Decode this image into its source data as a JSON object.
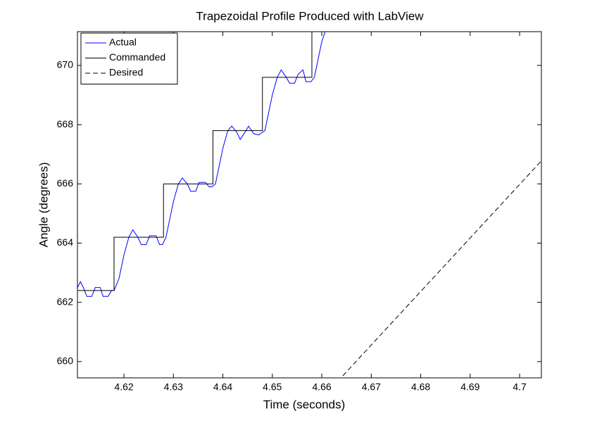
{
  "chart_data": {
    "type": "line",
    "title": "Trapezoidal Profile Produced with LabView",
    "xlabel": "Time (seconds)",
    "ylabel": "Angle (degrees)",
    "xlim": [
      4.6106,
      4.7044
    ],
    "ylim": [
      659.45,
      671.14
    ],
    "xticks": [
      4.62,
      4.63,
      4.64,
      4.65,
      4.66,
      4.67,
      4.68,
      4.69,
      4.7
    ],
    "yticks": [
      660,
      662,
      664,
      666,
      668,
      670
    ],
    "legend": "upper left",
    "series": [
      {
        "name": "Actual",
        "color": "#0000ff",
        "dashed": false,
        "x": [
          4.6106,
          4.6112,
          4.6118,
          4.6125,
          4.6135,
          4.6142,
          4.6152,
          4.6158,
          4.6168,
          4.6175,
          4.618,
          4.619,
          4.62,
          4.621,
          4.6218,
          4.6228,
          4.6235,
          4.6245,
          4.6252,
          4.6265,
          4.6272,
          4.6278,
          4.6285,
          4.629,
          4.63,
          4.631,
          4.6318,
          4.6328,
          4.6335,
          4.6345,
          4.6352,
          4.6365,
          4.6372,
          4.6378,
          4.6385,
          4.639,
          4.64,
          4.641,
          4.6418,
          4.6428,
          4.6435,
          4.6445,
          4.6452,
          4.6462,
          4.6472,
          4.6485,
          4.649,
          4.65,
          4.651,
          4.6518,
          4.6528,
          4.6535,
          4.6545,
          4.6552,
          4.6562,
          4.6568,
          4.6578,
          4.6585,
          4.659,
          4.66,
          4.661,
          4.667
        ],
        "values": [
          662.5,
          662.7,
          662.5,
          662.2,
          662.2,
          662.5,
          662.5,
          662.2,
          662.2,
          662.4,
          662.4,
          662.8,
          663.6,
          664.2,
          664.45,
          664.2,
          663.95,
          663.95,
          664.25,
          664.25,
          663.95,
          663.95,
          664.2,
          664.6,
          665.4,
          666.0,
          666.2,
          666.0,
          665.75,
          665.75,
          666.05,
          666.05,
          665.9,
          665.9,
          666.0,
          666.4,
          667.2,
          667.8,
          667.95,
          667.75,
          667.5,
          667.75,
          667.95,
          667.7,
          667.65,
          667.8,
          668.2,
          669.0,
          669.6,
          669.85,
          669.6,
          669.4,
          669.4,
          669.7,
          669.85,
          669.45,
          669.45,
          669.6,
          670.0,
          670.8,
          671.3,
          671.3
        ]
      },
      {
        "name": "Commanded",
        "color": "#000000",
        "dashed": false,
        "x": [
          4.6106,
          4.618,
          4.618,
          4.628,
          4.628,
          4.638,
          4.638,
          4.648,
          4.648,
          4.658,
          4.658,
          4.668
        ],
        "values": [
          662.4,
          662.4,
          664.2,
          664.2,
          666.0,
          666.0,
          667.8,
          667.8,
          669.6,
          669.6,
          671.4,
          671.4
        ]
      },
      {
        "name": "Desired",
        "color": "#000000",
        "dashed": true,
        "x": [
          4.66,
          4.71
        ],
        "values": [
          658.75,
          667.79
        ]
      }
    ]
  }
}
